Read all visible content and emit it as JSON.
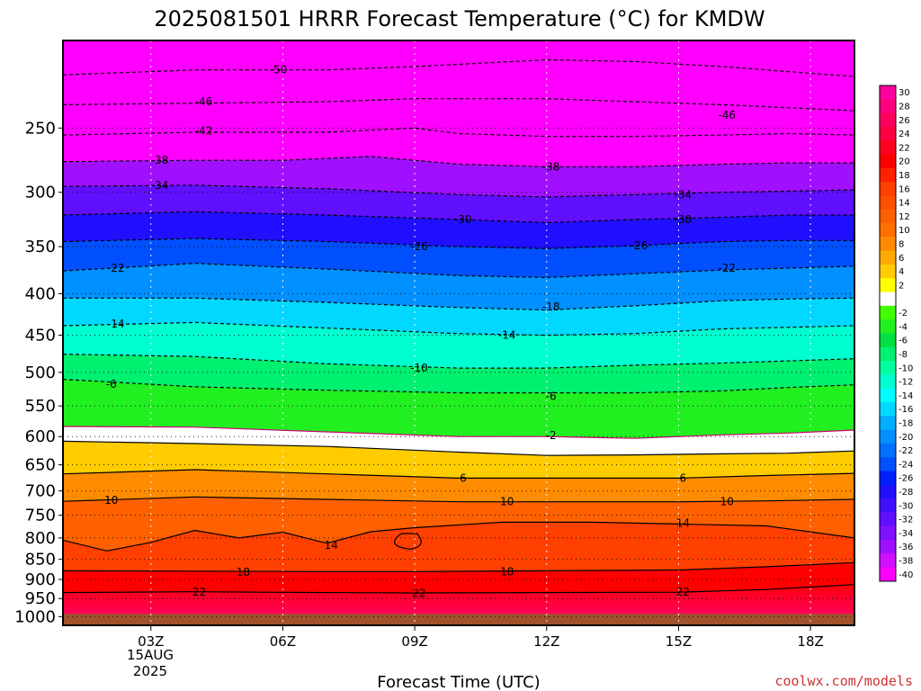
{
  "chart_data": {
    "type": "heatmap",
    "title": "2025081501 HRRR Forecast Temperature (°C) for KMDW",
    "xlabel": "Forecast Time (UTC)",
    "ylabel": "",
    "x_ticks": [
      "03Z",
      "06Z",
      "09Z",
      "12Z",
      "15Z",
      "18Z"
    ],
    "x_date_lines": [
      "15AUG",
      "2025"
    ],
    "xlim_hours": [
      1,
      19
    ],
    "y_scale": "log",
    "y_reversed": true,
    "y_ticks": [
      250,
      300,
      350,
      400,
      450,
      500,
      550,
      600,
      650,
      700,
      750,
      800,
      850,
      900,
      950,
      1000
    ],
    "ylim_hpa": [
      1025,
      195
    ],
    "surface_pressure_hpa": 992,
    "grid": true,
    "legend": "right colorbar",
    "colorbar_labels": [
      30,
      28,
      26,
      24,
      22,
      20,
      18,
      16,
      14,
      12,
      10,
      8,
      6,
      4,
      2,
      -2,
      -4,
      -6,
      -8,
      -10,
      -12,
      -14,
      -16,
      -18,
      -20,
      -22,
      -24,
      -26,
      -28,
      -30,
      -32,
      -34,
      -36,
      -38,
      -40
    ],
    "colors": {
      "30": "#ff00a0",
      "28": "#ff0080",
      "26": "#ff0060",
      "24": "#ff0040",
      "22": "#ff0020",
      "20": "#ff0000",
      "18": "#ff2000",
      "16": "#ff4000",
      "14": "#ff5000",
      "12": "#ff6000",
      "10": "#ff7000",
      "8": "#ff8c00",
      "6": "#ffaa00",
      "4": "#ffcc00",
      "2": "#ffff00",
      "0": "#ffffff",
      "-2": "#40ff00",
      "-4": "#20f020",
      "-6": "#00e040",
      "-8": "#00f070",
      "-10": "#00ffa0",
      "-12": "#00ffd0",
      "-14": "#00ffff",
      "-16": "#00d8ff",
      "-18": "#00b0ff",
      "-20": "#0090ff",
      "-22": "#0070ff",
      "-24": "#0050ff",
      "-26": "#0020ff",
      "-28": "#2010ff",
      "-30": "#4010ff",
      "-32": "#6010ff",
      "-34": "#8010ff",
      "-36": "#a010ff",
      "-38": "#d010ff",
      "-40": "#ff00ff",
      "ground": "#a0522d"
    },
    "contours": [
      {
        "level": 22,
        "points": [
          [
            1,
            934
          ],
          [
            4,
            932
          ],
          [
            7,
            934
          ],
          [
            9,
            935
          ],
          [
            12,
            934
          ],
          [
            15,
            933
          ],
          [
            17,
            926
          ],
          [
            19,
            913
          ]
        ]
      },
      {
        "level": 18,
        "points": [
          [
            1,
            878
          ],
          [
            4,
            879
          ],
          [
            7,
            880
          ],
          [
            9,
            880
          ],
          [
            12,
            878
          ],
          [
            15,
            876
          ],
          [
            17,
            868
          ],
          [
            19,
            858
          ]
        ]
      },
      {
        "level": 14,
        "points": [
          [
            1,
            805
          ],
          [
            2,
            830
          ],
          [
            3,
            810
          ],
          [
            4,
            783
          ],
          [
            5,
            800
          ],
          [
            6,
            787
          ],
          [
            7,
            812
          ],
          [
            8,
            786
          ],
          [
            9,
            777
          ],
          [
            11,
            765
          ],
          [
            13,
            765
          ],
          [
            15,
            769
          ],
          [
            17,
            773
          ],
          [
            19,
            800
          ]
        ]
      },
      {
        "level": 10,
        "points": [
          [
            1,
            721
          ],
          [
            4,
            712
          ],
          [
            7,
            717
          ],
          [
            10,
            722
          ],
          [
            12,
            722
          ],
          [
            15,
            722
          ],
          [
            17,
            720
          ],
          [
            19,
            717
          ]
        ]
      },
      {
        "level": 6,
        "points": [
          [
            1,
            667
          ],
          [
            4,
            659
          ],
          [
            7,
            667
          ],
          [
            10,
            675
          ],
          [
            12,
            675
          ],
          [
            15,
            675
          ],
          [
            17,
            670
          ],
          [
            19,
            666
          ]
        ]
      },
      {
        "level": 2,
        "points": [
          [
            1,
            608
          ],
          [
            4,
            612
          ],
          [
            7,
            617
          ],
          [
            10,
            627
          ],
          [
            12,
            633
          ],
          [
            14,
            632
          ],
          [
            16,
            630
          ],
          [
            17.5,
            629
          ],
          [
            19,
            625
          ]
        ]
      },
      {
        "level": -2,
        "points": [
          [
            1,
            583
          ],
          [
            4,
            584
          ],
          [
            7,
            592
          ],
          [
            10,
            600
          ],
          [
            12,
            600
          ],
          [
            14,
            603
          ],
          [
            16,
            597
          ],
          [
            17.5,
            594
          ],
          [
            19,
            589
          ]
        ]
      },
      {
        "level": -6,
        "points": [
          [
            1,
            510
          ],
          [
            4,
            521
          ],
          [
            7,
            526
          ],
          [
            10,
            530
          ],
          [
            12,
            530
          ],
          [
            14,
            530
          ],
          [
            16,
            527
          ],
          [
            17.5,
            522
          ],
          [
            19,
            518
          ]
        ]
      },
      {
        "level": -10,
        "points": [
          [
            1,
            475
          ],
          [
            4,
            478
          ],
          [
            7,
            488
          ],
          [
            10,
            494
          ],
          [
            12,
            494
          ],
          [
            14,
            490
          ],
          [
            16,
            487
          ],
          [
            17.5,
            484
          ],
          [
            19,
            481
          ]
        ]
      },
      {
        "level": -14,
        "points": [
          [
            1,
            438
          ],
          [
            4,
            434
          ],
          [
            7,
            441
          ],
          [
            10,
            448
          ],
          [
            12,
            450
          ],
          [
            14,
            448
          ],
          [
            16,
            442
          ],
          [
            17.5,
            440
          ],
          [
            19,
            438
          ]
        ]
      },
      {
        "level": -18,
        "points": [
          [
            1,
            405
          ],
          [
            4,
            405
          ],
          [
            7,
            410
          ],
          [
            10,
            416
          ],
          [
            12,
            419
          ],
          [
            14,
            414
          ],
          [
            16,
            408
          ],
          [
            17.5,
            406
          ],
          [
            19,
            405
          ]
        ]
      },
      {
        "level": -22,
        "points": [
          [
            1,
            375
          ],
          [
            4,
            367
          ],
          [
            7,
            373
          ],
          [
            10,
            380
          ],
          [
            12,
            382
          ],
          [
            14,
            378
          ],
          [
            16,
            374
          ],
          [
            17.5,
            372
          ],
          [
            19,
            370
          ]
        ]
      },
      {
        "level": -26,
        "points": [
          [
            1,
            345
          ],
          [
            4,
            342
          ],
          [
            7,
            345
          ],
          [
            10,
            350
          ],
          [
            12,
            352
          ],
          [
            14,
            349
          ],
          [
            16,
            345
          ],
          [
            17.5,
            344
          ],
          [
            19,
            344
          ]
        ]
      },
      {
        "level": -30,
        "points": [
          [
            1,
            320
          ],
          [
            4,
            317
          ],
          [
            7,
            320
          ],
          [
            10,
            324
          ],
          [
            12,
            327
          ],
          [
            14,
            324
          ],
          [
            16,
            322
          ],
          [
            17.5,
            320
          ],
          [
            19,
            320
          ]
        ]
      },
      {
        "level": -34,
        "points": [
          [
            1,
            295
          ],
          [
            4,
            294
          ],
          [
            7,
            297
          ],
          [
            10,
            302
          ],
          [
            12,
            304
          ],
          [
            14,
            302
          ],
          [
            16,
            300
          ],
          [
            17.5,
            299
          ],
          [
            19,
            298
          ]
        ]
      },
      {
        "level": -38,
        "points": [
          [
            1,
            275
          ],
          [
            4,
            274
          ],
          [
            6,
            274
          ],
          [
            8,
            271
          ],
          [
            10,
            277
          ],
          [
            12,
            279
          ],
          [
            14,
            279
          ],
          [
            16,
            277
          ],
          [
            17.5,
            276
          ],
          [
            19,
            276
          ]
        ]
      },
      {
        "level": -42,
        "points": [
          [
            1,
            255
          ],
          [
            4,
            253
          ],
          [
            7,
            253
          ],
          [
            9,
            250
          ],
          [
            10,
            254
          ],
          [
            12,
            256
          ],
          [
            14,
            256
          ],
          [
            16,
            255
          ],
          [
            17.5,
            254
          ],
          [
            19,
            255
          ]
        ]
      },
      {
        "level": -46,
        "points": [
          [
            1,
            234
          ],
          [
            4,
            233
          ],
          [
            7,
            232
          ],
          [
            9,
            230
          ],
          [
            12,
            230
          ],
          [
            14,
            232
          ],
          [
            16,
            234
          ],
          [
            17.5,
            236
          ],
          [
            19,
            238
          ]
        ]
      },
      {
        "level": -50,
        "points": [
          [
            1,
            215
          ],
          [
            4,
            212
          ],
          [
            7,
            212
          ],
          [
            9,
            210
          ],
          [
            12,
            206
          ],
          [
            14,
            207
          ],
          [
            16,
            210
          ],
          [
            17.5,
            213
          ],
          [
            19,
            216
          ]
        ]
      }
    ],
    "contour_labels": [
      {
        "text": "-50",
        "x": 5.9,
        "p": 212
      },
      {
        "text": "-46",
        "x": 4.2,
        "p": 232
      },
      {
        "text": "-46",
        "x": 16.1,
        "p": 241
      },
      {
        "text": "-42",
        "x": 4.2,
        "p": 252
      },
      {
        "text": "-38",
        "x": 3.2,
        "p": 274
      },
      {
        "text": "-38",
        "x": 12.1,
        "p": 279
      },
      {
        "text": "-34",
        "x": 3.2,
        "p": 294
      },
      {
        "text": "-34",
        "x": 15.1,
        "p": 302
      },
      {
        "text": "-30",
        "x": 10.1,
        "p": 324
      },
      {
        "text": "-30",
        "x": 15.1,
        "p": 324
      },
      {
        "text": "-26",
        "x": 9.1,
        "p": 350
      },
      {
        "text": "-26",
        "x": 14.1,
        "p": 349
      },
      {
        "text": "-22",
        "x": 2.2,
        "p": 372
      },
      {
        "text": "-22",
        "x": 16.1,
        "p": 372
      },
      {
        "text": "-18",
        "x": 12.1,
        "p": 415
      },
      {
        "text": "-14",
        "x": 2.2,
        "p": 436
      },
      {
        "text": "-14",
        "x": 11.1,
        "p": 450
      },
      {
        "text": "-10",
        "x": 9.1,
        "p": 494
      },
      {
        "text": "-6",
        "x": 2.1,
        "p": 517
      },
      {
        "text": "-6",
        "x": 12.1,
        "p": 535
      },
      {
        "text": "-2",
        "x": 12.1,
        "p": 598
      },
      {
        "text": "6",
        "x": 10.1,
        "p": 675
      },
      {
        "text": "6",
        "x": 15.1,
        "p": 675
      },
      {
        "text": "10",
        "x": 2.1,
        "p": 719
      },
      {
        "text": "10",
        "x": 11.1,
        "p": 722
      },
      {
        "text": "10",
        "x": 16.1,
        "p": 722
      },
      {
        "text": "14",
        "x": 7.1,
        "p": 817
      },
      {
        "text": "14",
        "x": 15.1,
        "p": 767
      },
      {
        "text": "18",
        "x": 5.1,
        "p": 882
      },
      {
        "text": "18",
        "x": 11.1,
        "p": 880
      },
      {
        "text": "22",
        "x": 4.1,
        "p": 933
      },
      {
        "text": "22",
        "x": 9.1,
        "p": 936
      },
      {
        "text": "22",
        "x": 15.1,
        "p": 933
      }
    ]
  },
  "credit": "coolwx.com/models"
}
